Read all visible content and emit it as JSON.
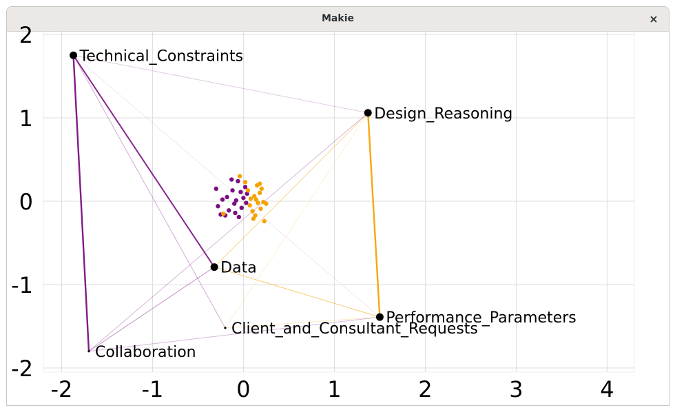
{
  "window": {
    "title": "Makie",
    "close_glyph": "×"
  },
  "colors": {
    "purple": "#7b0f80",
    "orange": "#f5a300",
    "grid": "#dddddd",
    "node": "#000000"
  },
  "chart_data": {
    "type": "scatter",
    "title": "",
    "xlabel": "",
    "ylabel": "",
    "xlim": [
      -2.2,
      4.3
    ],
    "ylim": [
      -2.05,
      2.05
    ],
    "xticks": [
      -2,
      -1,
      0,
      1,
      2,
      3,
      4
    ],
    "yticks": [
      -2,
      -1,
      0,
      1,
      2
    ],
    "xtick_labels": [
      "-2",
      "-1",
      "0",
      "1",
      "2",
      "3",
      "4"
    ],
    "ytick_labels": [
      "-2",
      "-1",
      "0",
      "1",
      "2"
    ],
    "grid": true,
    "nodes": [
      {
        "name": "Technical_Constraints",
        "x": -1.87,
        "y": 1.75,
        "size": "large"
      },
      {
        "name": "Design_Reasoning",
        "x": 1.37,
        "y": 1.06,
        "size": "large"
      },
      {
        "name": "Data",
        "x": -0.32,
        "y": -0.79,
        "size": "large"
      },
      {
        "name": "Performance_Parameters",
        "x": 1.5,
        "y": -1.39,
        "size": "large"
      },
      {
        "name": "Client_and_Consultant_Requests",
        "x": -0.2,
        "y": -1.52,
        "size": "small"
      },
      {
        "name": "Collaboration",
        "x": -1.7,
        "y": -1.8,
        "size": "small"
      }
    ],
    "edges": [
      {
        "from": "Technical_Constraints",
        "to": "Collaboration",
        "color": "purple",
        "width": 2.4,
        "opacity": 0.95
      },
      {
        "from": "Technical_Constraints",
        "to": "Data",
        "color": "purple",
        "width": 2.0,
        "opacity": 0.9
      },
      {
        "from": "Technical_Constraints",
        "to": "Client_and_Consultant_Requests",
        "color": "purple",
        "width": 1.0,
        "opacity": 0.35
      },
      {
        "from": "Technical_Constraints",
        "to": "Design_Reasoning",
        "color": "purple",
        "width": 1.0,
        "opacity": 0.22
      },
      {
        "from": "Technical_Constraints",
        "to": "Performance_Parameters",
        "color": "purple",
        "width": 0.8,
        "opacity": 0.12
      },
      {
        "from": "Design_Reasoning",
        "to": "Performance_Parameters",
        "color": "orange",
        "width": 2.4,
        "opacity": 0.95
      },
      {
        "from": "Design_Reasoning",
        "to": "Data",
        "color": "orange",
        "width": 1.0,
        "opacity": 0.45
      },
      {
        "from": "Design_Reasoning",
        "to": "Collaboration",
        "color": "purple",
        "width": 1.0,
        "opacity": 0.3
      },
      {
        "from": "Design_Reasoning",
        "to": "Client_and_Consultant_Requests",
        "color": "orange",
        "width": 0.8,
        "opacity": 0.2
      },
      {
        "from": "Data",
        "to": "Collaboration",
        "color": "purple",
        "width": 1.0,
        "opacity": 0.45
      },
      {
        "from": "Data",
        "to": "Performance_Parameters",
        "color": "orange",
        "width": 1.0,
        "opacity": 0.55
      },
      {
        "from": "Collaboration",
        "to": "Performance_Parameters",
        "color": "purple",
        "width": 1.0,
        "opacity": 0.3
      },
      {
        "from": "Client_and_Consultant_Requests",
        "to": "Performance_Parameters",
        "color": "orange",
        "width": 0.8,
        "opacity": 0.3
      }
    ],
    "cluster": [
      {
        "x": -0.3,
        "y": 0.15,
        "color": "purple"
      },
      {
        "x": -0.23,
        "y": 0.02,
        "color": "purple"
      },
      {
        "x": -0.28,
        "y": -0.06,
        "color": "purple"
      },
      {
        "x": -0.25,
        "y": -0.16,
        "color": "purple"
      },
      {
        "x": -0.18,
        "y": 0.05,
        "color": "purple"
      },
      {
        "x": -0.16,
        "y": -0.11,
        "color": "purple"
      },
      {
        "x": -0.13,
        "y": 0.26,
        "color": "purple"
      },
      {
        "x": -0.12,
        "y": 0.13,
        "color": "purple"
      },
      {
        "x": -0.1,
        "y": -0.03,
        "color": "purple"
      },
      {
        "x": -0.08,
        "y": 0.01,
        "color": "purple"
      },
      {
        "x": -0.06,
        "y": 0.24,
        "color": "purple"
      },
      {
        "x": -0.05,
        "y": -0.19,
        "color": "purple"
      },
      {
        "x": -0.03,
        "y": 0.11,
        "color": "purple"
      },
      {
        "x": -0.02,
        "y": -0.08,
        "color": "purple"
      },
      {
        "x": 0.0,
        "y": 0.04,
        "color": "purple"
      },
      {
        "x": 0.02,
        "y": 0.17,
        "color": "purple"
      },
      {
        "x": 0.03,
        "y": -0.02,
        "color": "purple"
      },
      {
        "x": -0.09,
        "y": -0.14,
        "color": "purple"
      },
      {
        "x": 0.04,
        "y": 0.09,
        "color": "purple"
      },
      {
        "x": -0.2,
        "y": -0.17,
        "color": "purple"
      },
      {
        "x": -0.04,
        "y": 0.3,
        "color": "orange"
      },
      {
        "x": 0.02,
        "y": 0.23,
        "color": "orange"
      },
      {
        "x": 0.05,
        "y": 0.13,
        "color": "orange"
      },
      {
        "x": 0.07,
        "y": -0.05,
        "color": "orange"
      },
      {
        "x": 0.08,
        "y": 0.03,
        "color": "orange"
      },
      {
        "x": 0.1,
        "y": -0.12,
        "color": "orange"
      },
      {
        "x": 0.12,
        "y": 0.06,
        "color": "orange"
      },
      {
        "x": 0.13,
        "y": -0.17,
        "color": "orange"
      },
      {
        "x": 0.15,
        "y": 0.19,
        "color": "orange"
      },
      {
        "x": 0.16,
        "y": -0.02,
        "color": "orange"
      },
      {
        "x": 0.18,
        "y": 0.1,
        "color": "orange"
      },
      {
        "x": 0.19,
        "y": -0.09,
        "color": "orange"
      },
      {
        "x": 0.2,
        "y": 0.15,
        "color": "orange"
      },
      {
        "x": 0.22,
        "y": -0.01,
        "color": "orange"
      },
      {
        "x": 0.23,
        "y": -0.24,
        "color": "orange"
      },
      {
        "x": 0.25,
        "y": -0.03,
        "color": "orange"
      },
      {
        "x": 0.18,
        "y": 0.21,
        "color": "orange"
      },
      {
        "x": 0.11,
        "y": -0.21,
        "color": "orange"
      },
      {
        "x": -0.22,
        "y": -0.15,
        "color": "orange"
      },
      {
        "x": 0.14,
        "y": 0.02,
        "color": "orange"
      }
    ]
  }
}
